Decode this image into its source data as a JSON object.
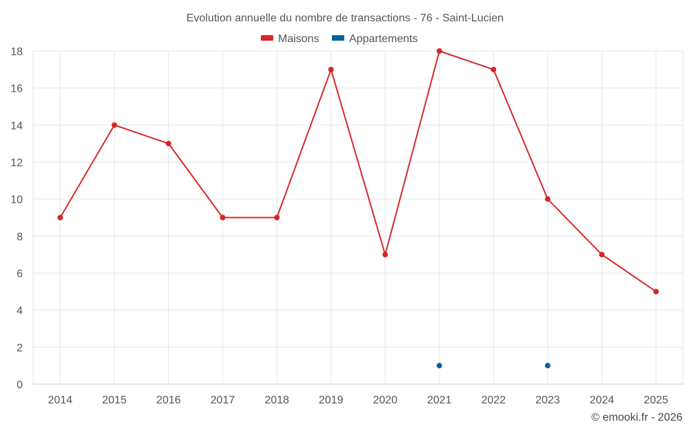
{
  "chart_data": {
    "type": "line",
    "title": "Evolution annuelle du nombre de transactions - 76 - Saint-Lucien",
    "categories": [
      "2014",
      "2015",
      "2016",
      "2017",
      "2018",
      "2019",
      "2020",
      "2021",
      "2022",
      "2023",
      "2024",
      "2025"
    ],
    "series": [
      {
        "name": "Maisons",
        "color": "#d62728",
        "values": [
          9,
          14,
          13,
          9,
          9,
          17,
          7,
          18,
          17,
          10,
          7,
          5
        ]
      },
      {
        "name": "Appartements",
        "color": "#08619e",
        "values": [
          null,
          null,
          null,
          null,
          null,
          null,
          null,
          1,
          null,
          1,
          null,
          null
        ]
      }
    ],
    "ylim": [
      0,
      18
    ],
    "yticks": [
      0,
      2,
      4,
      6,
      8,
      10,
      12,
      14,
      16,
      18
    ],
    "grid": true,
    "legend": "top-center",
    "credit": "© emooki.fr - 2026"
  }
}
